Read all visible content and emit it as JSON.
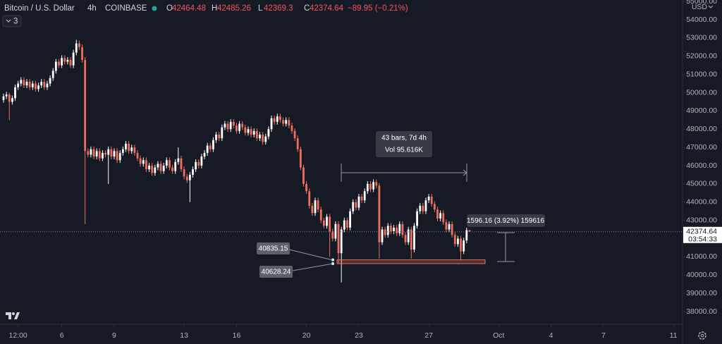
{
  "chart_data": {
    "type": "candlestick",
    "symbol": "Bitcoin / U.S. Dollar",
    "interval": "4h",
    "exchange": "COINBASE",
    "ohlc_letters": [
      "O",
      "H",
      "L",
      "C"
    ],
    "change_label": "−89.95 (−0.21%)",
    "indicator_count": "3",
    "currency": "USD",
    "countdown": "03:54:33",
    "up_color": "#ffffff",
    "down_color": "#ef6f5e",
    "xlim": [
      -1.21,
      232.4
    ],
    "xticks": [
      {
        "value": 5,
        "label": "12:00"
      },
      {
        "value": 20,
        "label": "6"
      },
      {
        "value": 38,
        "label": "9"
      },
      {
        "value": 62,
        "label": "13"
      },
      {
        "value": 80,
        "label": "16"
      },
      {
        "value": 104,
        "label": "20"
      },
      {
        "value": 122,
        "label": "23"
      },
      {
        "value": 146,
        "label": "27"
      },
      {
        "value": 170,
        "label": "Oct"
      },
      {
        "value": 188,
        "label": "4"
      },
      {
        "value": 206,
        "label": "7"
      },
      {
        "value": 230,
        "label": "11"
      }
    ],
    "ylim": [
      37304,
      55082
    ],
    "yticks": [
      {
        "value": 38000,
        "label": "38000.00"
      },
      {
        "value": 39000,
        "label": "39000.00"
      },
      {
        "value": 40000,
        "label": "40000.00"
      },
      {
        "value": 41000,
        "label": "41000.00"
      },
      {
        "value": 42000,
        "label": "42000.00"
      },
      {
        "value": 43000,
        "label": "43000.00"
      },
      {
        "value": 44000,
        "label": "44000.00"
      },
      {
        "value": 45000,
        "label": "45000.00"
      },
      {
        "value": 46000,
        "label": "46000.00"
      },
      {
        "value": 47000,
        "label": "47000.00"
      },
      {
        "value": 48000,
        "label": "48000.00"
      },
      {
        "value": 49000,
        "label": "49000.00"
      },
      {
        "value": 50000,
        "label": "50000.00"
      },
      {
        "value": 51000,
        "label": "51000.00"
      },
      {
        "value": 52000,
        "label": "52000.00"
      },
      {
        "value": 53000,
        "label": "53000.00"
      },
      {
        "value": 54000,
        "label": "54000.00"
      },
      {
        "value": 55000,
        "label": "55000.00"
      }
    ],
    "annotations": {
      "bars": "43 bars, 7d 4h",
      "volume": "Vol 95.616K",
      "measure": "1596.16 (3.92%) 159616",
      "price_upper": 40835.15,
      "price_lower": 40628.24
    },
    "candles": [
      [
        49600,
        49950,
        49450,
        49800
      ],
      [
        49800,
        50050,
        49650,
        49900
      ],
      [
        49900,
        50000,
        48500,
        49500
      ],
      [
        49500,
        49850,
        49350,
        49700
      ],
      [
        49700,
        50450,
        49550,
        50300
      ],
      [
        50300,
        50650,
        50150,
        50500
      ],
      [
        50500,
        50850,
        50350,
        50700
      ],
      [
        50700,
        50850,
        50250,
        50400
      ],
      [
        50400,
        50750,
        50250,
        50600
      ],
      [
        50600,
        50750,
        50150,
        50300
      ],
      [
        50300,
        50650,
        50150,
        50500
      ],
      [
        50500,
        50650,
        50050,
        50200
      ],
      [
        50200,
        50550,
        50050,
        50400
      ],
      [
        50400,
        50750,
        50250,
        50600
      ],
      [
        50600,
        50750,
        50150,
        50300
      ],
      [
        50300,
        50650,
        50150,
        50500
      ],
      [
        50500,
        50950,
        50350,
        50800
      ],
      [
        50800,
        51350,
        50650,
        51200
      ],
      [
        51200,
        51850,
        51050,
        51700
      ],
      [
        51700,
        51850,
        51350,
        51500
      ],
      [
        51500,
        52050,
        51350,
        51900
      ],
      [
        51900,
        52050,
        51550,
        51700
      ],
      [
        51700,
        51950,
        51550,
        51800
      ],
      [
        51800,
        51950,
        51350,
        51500
      ],
      [
        51500,
        52350,
        51350,
        52200
      ],
      [
        52200,
        52900,
        52050,
        52700
      ],
      [
        52700,
        52850,
        52350,
        52500
      ],
      [
        52500,
        52650,
        51650,
        51800
      ],
      [
        51800,
        51950,
        42800,
        46800
      ],
      [
        46800,
        46950,
        46450,
        46600
      ],
      [
        46600,
        47050,
        46450,
        46900
      ],
      [
        46900,
        47050,
        46350,
        46500
      ],
      [
        46500,
        46950,
        46350,
        46800
      ],
      [
        46800,
        46950,
        46250,
        46400
      ],
      [
        46400,
        46850,
        46250,
        46700
      ],
      [
        46700,
        46850,
        46450,
        46600
      ],
      [
        46600,
        47050,
        45000,
        46900
      ],
      [
        46900,
        47050,
        46350,
        46500
      ],
      [
        46500,
        46950,
        46350,
        46800
      ],
      [
        46800,
        46950,
        46150,
        46300
      ],
      [
        46300,
        46850,
        46150,
        46700
      ],
      [
        46700,
        47050,
        46550,
        46900
      ],
      [
        46900,
        47350,
        46750,
        47200
      ],
      [
        47200,
        47350,
        46650,
        46800
      ],
      [
        46800,
        47150,
        46650,
        47000
      ],
      [
        47000,
        47150,
        46550,
        46700
      ],
      [
        46700,
        46850,
        46250,
        46400
      ],
      [
        46400,
        46550,
        45950,
        46100
      ],
      [
        46100,
        46450,
        45950,
        46300
      ],
      [
        46300,
        46450,
        45650,
        45800
      ],
      [
        45800,
        46150,
        45650,
        46000
      ],
      [
        46000,
        46150,
        45450,
        45600
      ],
      [
        45600,
        46050,
        45450,
        45900
      ],
      [
        45900,
        46250,
        45750,
        46100
      ],
      [
        46100,
        46250,
        45550,
        45700
      ],
      [
        45700,
        46150,
        45550,
        46000
      ],
      [
        46000,
        46450,
        45850,
        46300
      ],
      [
        46300,
        46450,
        45750,
        45900
      ],
      [
        45900,
        46050,
        45550,
        45700
      ],
      [
        45700,
        46350,
        45550,
        46200
      ],
      [
        46200,
        47000,
        46050,
        46400
      ],
      [
        46400,
        46550,
        45650,
        45800
      ],
      [
        45800,
        45950,
        45250,
        45400
      ],
      [
        45400,
        45550,
        45050,
        45200
      ],
      [
        45200,
        45650,
        44000,
        45500
      ],
      [
        45500,
        45950,
        45350,
        45800
      ],
      [
        45800,
        46350,
        45650,
        46200
      ],
      [
        46200,
        46350,
        45850,
        46000
      ],
      [
        46000,
        46650,
        45850,
        46500
      ],
      [
        46500,
        46850,
        46350,
        46700
      ],
      [
        46700,
        47250,
        46550,
        47100
      ],
      [
        47100,
        47250,
        46750,
        46900
      ],
      [
        46900,
        47550,
        46750,
        47400
      ],
      [
        47400,
        47850,
        47250,
        47700
      ],
      [
        47700,
        47850,
        47350,
        47500
      ],
      [
        47500,
        48250,
        47350,
        48100
      ],
      [
        48100,
        48450,
        47950,
        48300
      ],
      [
        48300,
        48450,
        47850,
        48000
      ],
      [
        48000,
        48550,
        47850,
        48400
      ],
      [
        48400,
        48550,
        48050,
        48200
      ],
      [
        48200,
        48350,
        47750,
        47900
      ],
      [
        47900,
        48450,
        47750,
        48300
      ],
      [
        48300,
        48450,
        47950,
        48100
      ],
      [
        48100,
        48250,
        47650,
        47800
      ],
      [
        47800,
        48150,
        47650,
        48000
      ],
      [
        48000,
        48150,
        47550,
        47700
      ],
      [
        47700,
        48050,
        47550,
        47900
      ],
      [
        47900,
        48050,
        47350,
        47500
      ],
      [
        47500,
        47850,
        47350,
        47700
      ],
      [
        47700,
        47850,
        47150,
        47300
      ],
      [
        47300,
        47750,
        47150,
        47600
      ],
      [
        47600,
        48150,
        47450,
        48000
      ],
      [
        48000,
        48750,
        47850,
        48600
      ],
      [
        48600,
        48750,
        48250,
        48400
      ],
      [
        48400,
        48850,
        48250,
        48700
      ],
      [
        48700,
        48850,
        48350,
        48500
      ],
      [
        48500,
        48650,
        48150,
        48300
      ],
      [
        48300,
        48650,
        48150,
        48500
      ],
      [
        48500,
        48650,
        48050,
        48200
      ],
      [
        48200,
        48350,
        47750,
        47900
      ],
      [
        47900,
        48050,
        47350,
        47500
      ],
      [
        47500,
        47650,
        46750,
        46900
      ],
      [
        46900,
        47050,
        45750,
        45900
      ],
      [
        45900,
        46050,
        44850,
        45000
      ],
      [
        45000,
        45150,
        44450,
        44600
      ],
      [
        44600,
        44750,
        43650,
        43800
      ],
      [
        43800,
        43950,
        43250,
        43400
      ],
      [
        43400,
        44250,
        43250,
        44100
      ],
      [
        44100,
        44250,
        43450,
        43600
      ],
      [
        43600,
        43750,
        42850,
        43000
      ],
      [
        43000,
        43150,
        42550,
        42700
      ],
      [
        42700,
        43350,
        42550,
        43200
      ],
      [
        43200,
        43350,
        41000,
        42400
      ],
      [
        42400,
        42550,
        41850,
        42000
      ],
      [
        42000,
        42950,
        41850,
        42800
      ],
      [
        42800,
        42950,
        40600,
        41200
      ],
      [
        41200,
        42650,
        39600,
        42500
      ],
      [
        42500,
        43150,
        42350,
        43000
      ],
      [
        43000,
        43150,
        42450,
        42600
      ],
      [
        42600,
        43650,
        42450,
        43500
      ],
      [
        43500,
        44150,
        43350,
        44000
      ],
      [
        44000,
        44150,
        43550,
        43700
      ],
      [
        43700,
        44450,
        43550,
        44300
      ],
      [
        44300,
        44450,
        43950,
        44100
      ],
      [
        44100,
        44750,
        43950,
        44600
      ],
      [
        44600,
        45150,
        44450,
        45000
      ],
      [
        45000,
        45150,
        44550,
        44700
      ],
      [
        44700,
        45250,
        44550,
        45100
      ],
      [
        45100,
        45250,
        44750,
        44900
      ],
      [
        44900,
        45050,
        40900,
        41800
      ],
      [
        41800,
        42650,
        41650,
        42500
      ],
      [
        42500,
        42650,
        42050,
        42200
      ],
      [
        42200,
        42850,
        42050,
        42700
      ],
      [
        42700,
        42850,
        42250,
        42400
      ],
      [
        42400,
        42750,
        42250,
        42600
      ],
      [
        42600,
        42750,
        42150,
        42300
      ],
      [
        42300,
        42950,
        42150,
        42800
      ],
      [
        42800,
        42950,
        42050,
        42200
      ],
      [
        42200,
        42350,
        41650,
        41800
      ],
      [
        41800,
        42650,
        41650,
        42500
      ],
      [
        42500,
        42650,
        40900,
        41400
      ],
      [
        41400,
        42850,
        41250,
        42700
      ],
      [
        42700,
        43650,
        42550,
        43500
      ],
      [
        43500,
        43950,
        43350,
        43800
      ],
      [
        43800,
        43950,
        43350,
        43500
      ],
      [
        43500,
        44250,
        43350,
        44100
      ],
      [
        44100,
        44450,
        43950,
        44300
      ],
      [
        44300,
        44450,
        43750,
        43900
      ],
      [
        43900,
        44050,
        43450,
        43600
      ],
      [
        43600,
        43750,
        42950,
        43100
      ],
      [
        43100,
        43550,
        42950,
        43400
      ],
      [
        43400,
        43550,
        42750,
        42900
      ],
      [
        42900,
        43050,
        42350,
        42500
      ],
      [
        42500,
        42950,
        42350,
        42800
      ],
      [
        42800,
        42950,
        42050,
        42200
      ],
      [
        42200,
        42350,
        41550,
        41700
      ],
      [
        41700,
        42150,
        41550,
        42000
      ],
      [
        42000,
        42150,
        40800,
        41300
      ],
      [
        41300,
        42050,
        41150,
        41900
      ],
      [
        41900,
        42600,
        41750,
        42464.48
      ],
      [
        42464.48,
        42485.26,
        42369.3,
        42374.64
      ]
    ]
  }
}
